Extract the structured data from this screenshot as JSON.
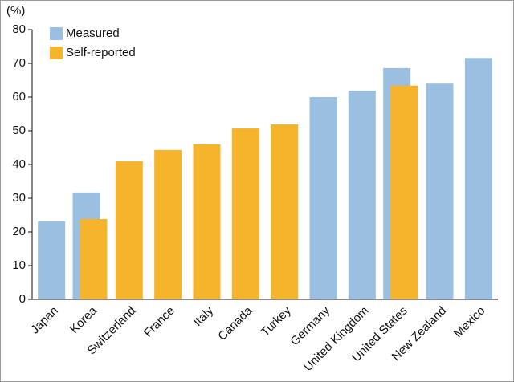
{
  "chart_data": {
    "type": "bar",
    "y_label": "(%)",
    "categories": [
      "Japan",
      "Korea",
      "Switzerland",
      "France",
      "Italy",
      "Canada",
      "Turkey",
      "Germany",
      "United Kingdom",
      "United States",
      "New Zealand",
      "Mexico"
    ],
    "series": [
      {
        "name": "Measured",
        "color": "#9bbfe0",
        "values": [
          23.1,
          31.7,
          null,
          null,
          null,
          null,
          null,
          60.0,
          61.9,
          68.6,
          64.0,
          71.6
        ]
      },
      {
        "name": "Self-reported",
        "color": "#f6b42c",
        "values": [
          null,
          23.8,
          41.0,
          44.3,
          46.0,
          50.7,
          51.9,
          null,
          null,
          63.4,
          null,
          null
        ]
      }
    ],
    "ylim": [
      0,
      80
    ],
    "yticks": [
      0,
      10,
      20,
      30,
      40,
      50,
      60,
      70,
      80
    ],
    "legend": "top-left"
  }
}
